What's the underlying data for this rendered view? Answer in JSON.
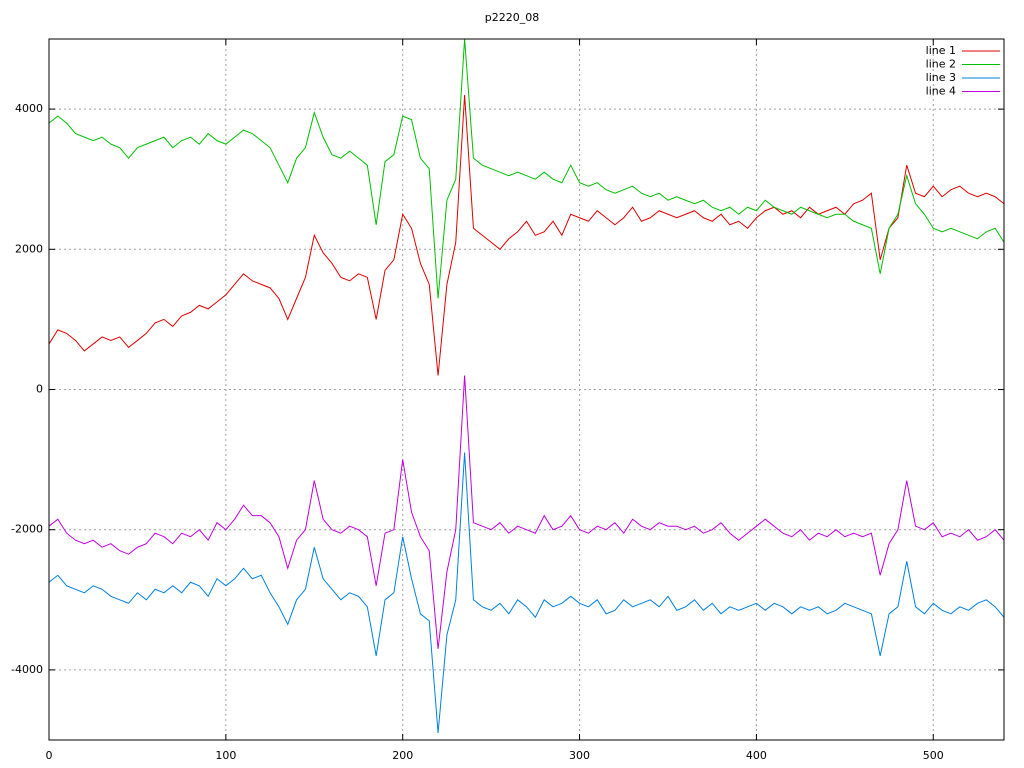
{
  "chart_data": {
    "type": "line",
    "title": "p2220_08",
    "x": [
      0,
      5,
      10,
      15,
      20,
      25,
      30,
      35,
      40,
      45,
      50,
      55,
      60,
      65,
      70,
      75,
      80,
      85,
      90,
      95,
      100,
      105,
      110,
      115,
      120,
      125,
      130,
      135,
      140,
      145,
      150,
      155,
      160,
      165,
      170,
      175,
      180,
      185,
      190,
      195,
      200,
      205,
      210,
      215,
      220,
      225,
      230,
      235,
      240,
      245,
      250,
      255,
      260,
      265,
      270,
      275,
      280,
      285,
      290,
      295,
      300,
      305,
      310,
      315,
      320,
      325,
      330,
      335,
      340,
      345,
      350,
      355,
      360,
      365,
      370,
      375,
      380,
      385,
      390,
      395,
      400,
      405,
      410,
      415,
      420,
      425,
      430,
      435,
      440,
      445,
      450,
      455,
      460,
      465,
      470,
      475,
      480,
      485,
      490,
      495,
      500,
      505,
      510,
      515,
      520,
      525,
      530,
      535,
      540
    ],
    "series": [
      {
        "name": "line 1",
        "color": "#e00000",
        "values": [
          650,
          850,
          800,
          700,
          550,
          650,
          750,
          700,
          750,
          600,
          700,
          800,
          950,
          1000,
          900,
          1050,
          1100,
          1200,
          1150,
          1250,
          1350,
          1500,
          1650,
          1550,
          1500,
          1450,
          1300,
          1000,
          1300,
          1600,
          2200,
          1950,
          1800,
          1600,
          1550,
          1650,
          1600,
          1000,
          1700,
          1850,
          2500,
          2300,
          1800,
          1500,
          200,
          1500,
          2100,
          4200,
          2300,
          2200,
          2100,
          2000,
          2150,
          2250,
          2400,
          2200,
          2250,
          2400,
          2200,
          2500,
          2450,
          2400,
          2550,
          2450,
          2350,
          2450,
          2600,
          2400,
          2450,
          2550,
          2500,
          2450,
          2500,
          2550,
          2450,
          2400,
          2500,
          2350,
          2400,
          2300,
          2450,
          2550,
          2600,
          2500,
          2550,
          2450,
          2600,
          2500,
          2550,
          2600,
          2500,
          2650,
          2700,
          2800,
          1850,
          2300,
          2450,
          3200,
          2800,
          2750,
          2900,
          2750,
          2850,
          2900,
          2800,
          2750,
          2800,
          2750,
          2650
        ]
      },
      {
        "name": "line 2",
        "color": "#00c000",
        "values": [
          3800,
          3900,
          3800,
          3650,
          3600,
          3550,
          3600,
          3500,
          3450,
          3300,
          3450,
          3500,
          3550,
          3600,
          3450,
          3550,
          3600,
          3500,
          3650,
          3550,
          3500,
          3600,
          3700,
          3650,
          3550,
          3450,
          3200,
          2950,
          3300,
          3450,
          3950,
          3600,
          3350,
          3300,
          3400,
          3300,
          3200,
          2350,
          3250,
          3350,
          3900,
          3850,
          3300,
          3150,
          1300,
          2700,
          3000,
          5000,
          3300,
          3200,
          3150,
          3100,
          3050,
          3100,
          3050,
          3000,
          3100,
          3000,
          2950,
          3200,
          2950,
          2900,
          2950,
          2850,
          2800,
          2850,
          2900,
          2800,
          2750,
          2800,
          2700,
          2750,
          2700,
          2650,
          2700,
          2600,
          2550,
          2600,
          2500,
          2600,
          2550,
          2700,
          2600,
          2550,
          2500,
          2600,
          2550,
          2500,
          2450,
          2500,
          2500,
          2400,
          2350,
          2300,
          1650,
          2300,
          2500,
          3050,
          2650,
          2500,
          2300,
          2250,
          2300,
          2250,
          2200,
          2150,
          2250,
          2300,
          2100
        ]
      },
      {
        "name": "line 3",
        "color": "#0080e0",
        "values": [
          -2750,
          -2650,
          -2800,
          -2850,
          -2900,
          -2800,
          -2850,
          -2950,
          -3000,
          -3050,
          -2900,
          -3000,
          -2850,
          -2900,
          -2800,
          -2900,
          -2750,
          -2800,
          -2950,
          -2700,
          -2800,
          -2700,
          -2550,
          -2700,
          -2650,
          -2900,
          -3100,
          -3350,
          -3000,
          -2850,
          -2250,
          -2700,
          -2850,
          -3000,
          -2900,
          -2950,
          -3100,
          -3800,
          -3000,
          -2900,
          -2100,
          -2700,
          -3200,
          -3300,
          -4900,
          -3500,
          -3000,
          -900,
          -3000,
          -3100,
          -3150,
          -3050,
          -3200,
          -3000,
          -3100,
          -3250,
          -3000,
          -3100,
          -3050,
          -2950,
          -3050,
          -3100,
          -3000,
          -3200,
          -3150,
          -3000,
          -3100,
          -3050,
          -3000,
          -3100,
          -2950,
          -3150,
          -3100,
          -3000,
          -3150,
          -3050,
          -3200,
          -3100,
          -3150,
          -3100,
          -3050,
          -3150,
          -3050,
          -3100,
          -3200,
          -3100,
          -3150,
          -3100,
          -3200,
          -3150,
          -3050,
          -3100,
          -3150,
          -3200,
          -3800,
          -3200,
          -3100,
          -2450,
          -3100,
          -3200,
          -3050,
          -3150,
          -3200,
          -3100,
          -3150,
          -3050,
          -3000,
          -3100,
          -3250
        ]
      },
      {
        "name": "line 4",
        "color": "#c000e0",
        "values": [
          -1950,
          -1850,
          -2050,
          -2150,
          -2200,
          -2150,
          -2250,
          -2200,
          -2300,
          -2350,
          -2250,
          -2200,
          -2050,
          -2100,
          -2200,
          -2050,
          -2100,
          -2000,
          -2150,
          -1900,
          -2000,
          -1850,
          -1650,
          -1800,
          -1800,
          -1900,
          -2100,
          -2550,
          -2150,
          -2000,
          -1300,
          -1850,
          -2000,
          -2050,
          -1950,
          -2000,
          -2100,
          -2800,
          -2050,
          -2000,
          -1000,
          -1750,
          -2100,
          -2300,
          -3700,
          -2600,
          -2000,
          200,
          -1900,
          -1950,
          -2000,
          -1900,
          -2050,
          -1950,
          -2000,
          -2050,
          -1800,
          -2000,
          -1950,
          -1800,
          -2000,
          -2050,
          -1950,
          -2000,
          -1900,
          -2050,
          -1850,
          -1950,
          -2000,
          -1900,
          -1950,
          -1950,
          -2000,
          -1950,
          -2050,
          -2000,
          -1900,
          -2050,
          -2150,
          -2050,
          -1950,
          -1850,
          -1950,
          -2050,
          -2100,
          -2000,
          -2150,
          -2050,
          -2100,
          -2000,
          -2100,
          -2050,
          -2100,
          -2050,
          -2650,
          -2200,
          -2000,
          -1300,
          -1950,
          -2000,
          -1900,
          -2100,
          -2050,
          -2100,
          -2000,
          -2150,
          -2100,
          -2000,
          -2150
        ]
      }
    ],
    "xlim": [
      0,
      540
    ],
    "xticks": [
      0,
      100,
      200,
      300,
      400,
      500
    ],
    "ylim": [
      -5000,
      5000
    ],
    "yticks": [
      -4000,
      -2000,
      0,
      2000,
      4000
    ],
    "grid": true,
    "legend": "top-right"
  }
}
